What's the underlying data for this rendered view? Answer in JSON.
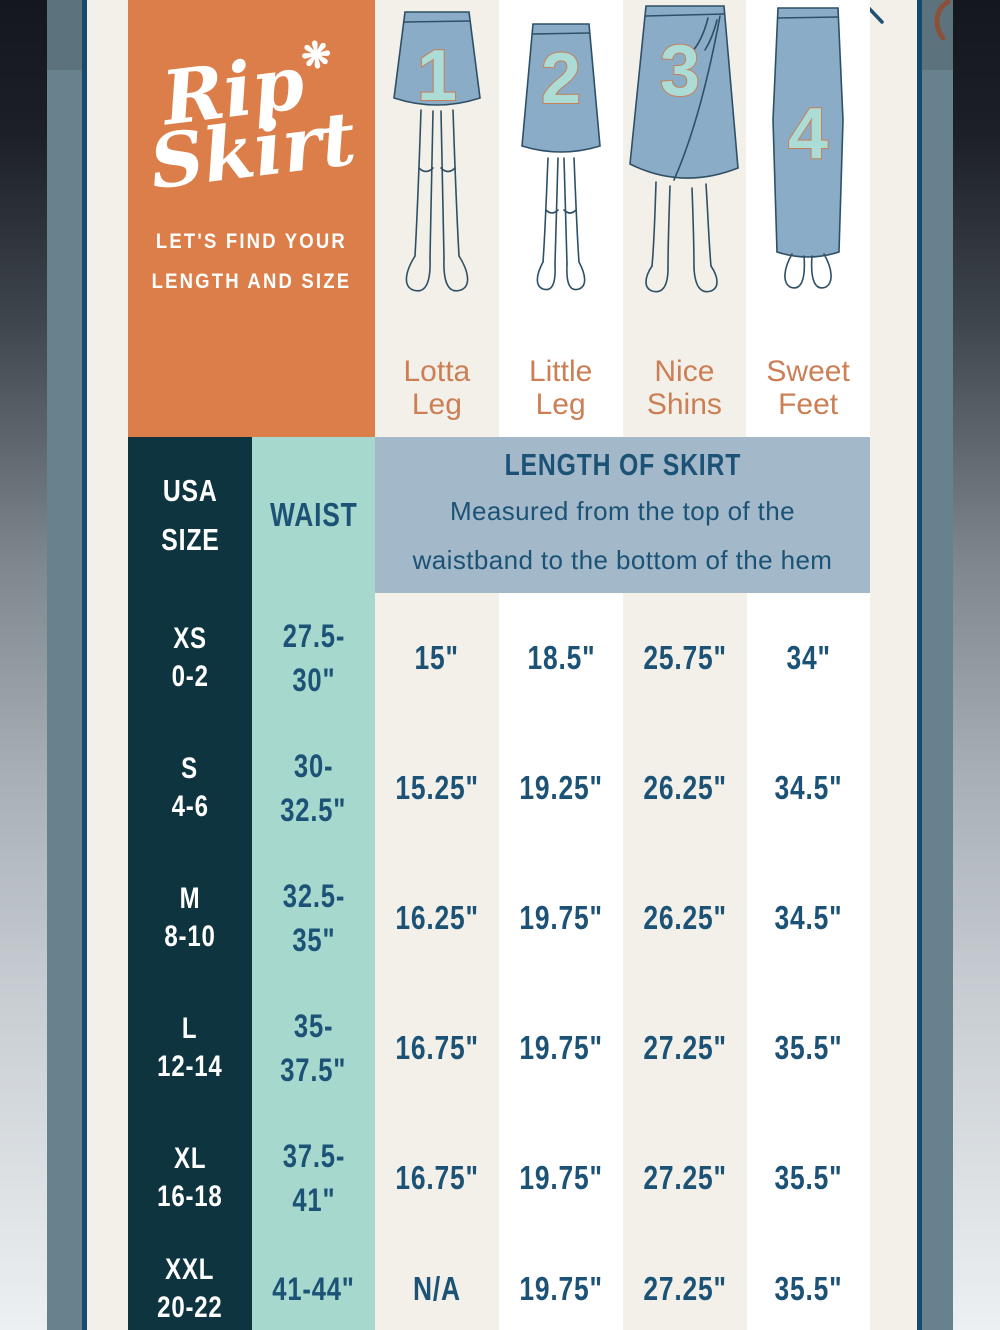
{
  "modal": {
    "close_label": "close",
    "brand": {
      "logo_line1": "Rip",
      "logo_flower": "❋",
      "logo_line2": "Skirt",
      "tagline_line1": "LET'S FIND YOUR",
      "tagline_line2": "LENGTH AND SIZE"
    },
    "styles": [
      {
        "number": "1",
        "label_line1": "Lotta",
        "label_line2": "Leg"
      },
      {
        "number": "2",
        "label_line1": "Little",
        "label_line2": "Leg"
      },
      {
        "number": "3",
        "label_line1": "Nice",
        "label_line2": "Shins"
      },
      {
        "number": "4",
        "label_line1": "Sweet",
        "label_line2": "Feet"
      }
    ],
    "table": {
      "col1_header_line1": "USA",
      "col1_header_line2": "SIZE",
      "col2_header": "WAIST",
      "length_header": {
        "title": "LENGTH OF SKIRT",
        "desc_line1": "Measured from the top of the",
        "desc_line2": "waistband to the bottom of the hem"
      },
      "rows": [
        {
          "size_line1": "XS",
          "size_line2": "0-2",
          "waist_line1": "27.5-",
          "waist_line2": "30\"",
          "lengths": [
            "15\"",
            "18.5\"",
            "25.75\"",
            "34\""
          ]
        },
        {
          "size_line1": "S",
          "size_line2": "4-6",
          "waist_line1": "30-",
          "waist_line2": "32.5\"",
          "lengths": [
            "15.25\"",
            "19.25\"",
            "26.25\"",
            "34.5\""
          ]
        },
        {
          "size_line1": "M",
          "size_line2": "8-10",
          "waist_line1": "32.5-",
          "waist_line2": "35\"",
          "lengths": [
            "16.25\"",
            "19.75\"",
            "26.25\"",
            "34.5\""
          ]
        },
        {
          "size_line1": "L",
          "size_line2": "12-14",
          "waist_line1": "35-",
          "waist_line2": "37.5\"",
          "lengths": [
            "16.75\"",
            "19.75\"",
            "27.25\"",
            "35.5\""
          ]
        },
        {
          "size_line1": "XL",
          "size_line2": "16-18",
          "waist_line1": "37.5-",
          "waist_line2": "41\"",
          "lengths": [
            "16.75\"",
            "19.75\"",
            "27.25\"",
            "35.5\""
          ]
        },
        {
          "size_line1": "XXL",
          "size_line2": "20-22",
          "waist_line1": "41-44\"",
          "waist_line2": "",
          "lengths": [
            "N/A",
            "19.75\"",
            "27.25\"",
            "35.5\""
          ]
        }
      ]
    }
  },
  "colors": {
    "orange": "#DC7E4A",
    "dark_teal": "#0E3440",
    "mint": "#A6D8CE",
    "steel_blue": "#A3B9C9",
    "beige": "#F2F0E8",
    "text_blue": "#1B5276",
    "label_orange": "#CC7F55",
    "skirt_fill": "#8BACC7",
    "skirt_outline": "#2E5066",
    "number_fill": "#ABDCD6",
    "number_stroke": "#C67F58",
    "modal_border": "#164A6E"
  }
}
